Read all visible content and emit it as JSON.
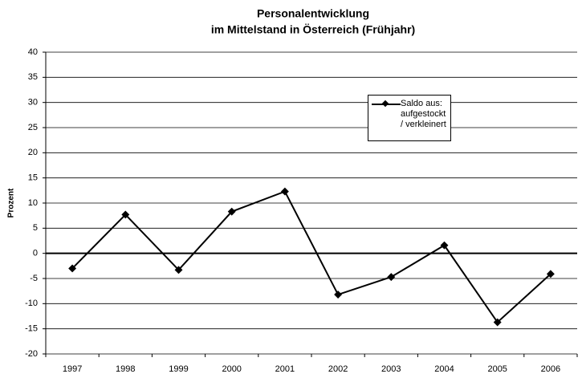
{
  "chart_data": {
    "type": "line",
    "title": [
      "Personalentwicklung",
      "im Mittelstand in Österreich (Frühjahr)"
    ],
    "y_label": "Prozent",
    "categories": [
      "1997",
      "1998",
      "1999",
      "2000",
      "2001",
      "2002",
      "2003",
      "2004",
      "2005",
      "2006"
    ],
    "series": [
      {
        "name": "Saldo aus: aufgestockt / verkleinert",
        "color": "#000000",
        "values": [
          -3,
          7.7,
          -3.3,
          8.3,
          12.3,
          -8.2,
          -4.7,
          1.6,
          -13.7,
          -4.1
        ]
      }
    ],
    "ylim": [
      -20,
      40
    ],
    "yticks": [
      -20,
      -15,
      -10,
      -5,
      0,
      5,
      10,
      15,
      20,
      25,
      30,
      35,
      40
    ],
    "grid": true,
    "legend": "upper right"
  }
}
